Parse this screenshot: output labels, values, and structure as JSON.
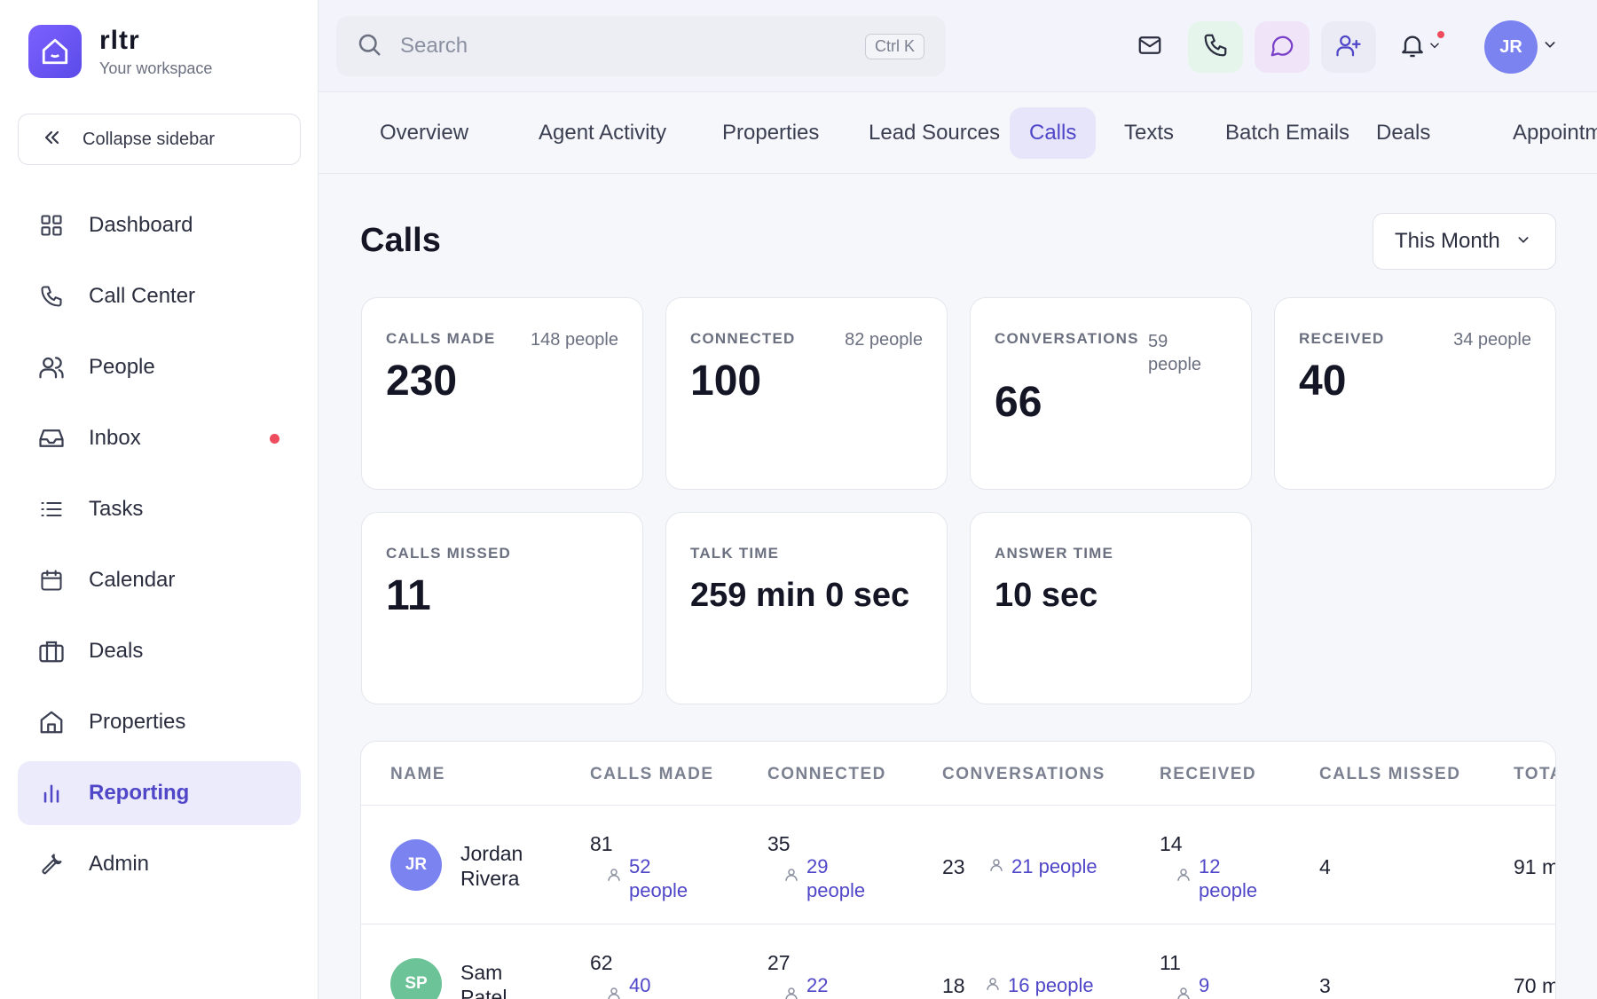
{
  "brand": {
    "name": "rltr",
    "subtitle": "Your workspace"
  },
  "sidebar": {
    "collapse_label": "Collapse sidebar",
    "items": [
      {
        "label": "Dashboard",
        "icon": "grid-icon"
      },
      {
        "label": "Call Center",
        "icon": "phone-icon"
      },
      {
        "label": "People",
        "icon": "users-icon"
      },
      {
        "label": "Inbox",
        "icon": "inbox-icon",
        "has_dot": true
      },
      {
        "label": "Tasks",
        "icon": "list-icon"
      },
      {
        "label": "Calendar",
        "icon": "calendar-icon"
      },
      {
        "label": "Deals",
        "icon": "briefcase-icon"
      },
      {
        "label": "Properties",
        "icon": "home-icon"
      },
      {
        "label": "Reporting",
        "icon": "bar-chart-icon",
        "active": true
      },
      {
        "label": "Admin",
        "icon": "wrench-icon"
      }
    ]
  },
  "topbar": {
    "search_placeholder": "Search",
    "shortcut": "Ctrl K",
    "user_initials": "JR"
  },
  "tabs": [
    {
      "label": "Overview"
    },
    {
      "label": "Agent Activity"
    },
    {
      "label": "Properties"
    },
    {
      "label": "Lead Sources"
    },
    {
      "label": "Calls",
      "active": true
    },
    {
      "label": "Texts"
    },
    {
      "label": "Batch Emails"
    },
    {
      "label": "Deals"
    },
    {
      "label": "Appointme"
    }
  ],
  "page": {
    "title": "Calls",
    "period": "This Month"
  },
  "cards": [
    {
      "label": "CALLS MADE",
      "people": "148 people",
      "value": "230"
    },
    {
      "label": "CONNECTED",
      "people": "82 people",
      "value": "100"
    },
    {
      "label": "CONVERSATIONS",
      "people": "59 people",
      "value": "66"
    },
    {
      "label": "RECEIVED",
      "people": "34 people",
      "value": "40"
    },
    {
      "label": "CALLS MISSED",
      "value": "11"
    },
    {
      "label": "TALK TIME",
      "value": "259 min 0 sec"
    },
    {
      "label": "ANSWER TIME",
      "value": "10 sec"
    }
  ],
  "table": {
    "headers": [
      "NAME",
      "CALLS MADE",
      "CONNECTED",
      "CONVERSATIONS",
      "RECEIVED",
      "CALLS MISSED",
      "TOTA"
    ],
    "rows": [
      {
        "initials": "JR",
        "name": "Jordan Rivera",
        "avatar_color": "#7b83f0",
        "calls_made": "81",
        "calls_made_people": "52 people",
        "connected": "35",
        "connected_people": "29 people",
        "conversations": "23",
        "conversations_people": "21 people",
        "received": "14",
        "received_people": "12 people",
        "calls_missed": "4",
        "total": "91 m"
      },
      {
        "initials": "SP",
        "name": "Sam Patel",
        "avatar_color": "#6cc397",
        "calls_made": "62",
        "calls_made_people": "40",
        "connected": "27",
        "connected_people": "22",
        "conversations": "18",
        "conversations_people": "16 people",
        "received": "11",
        "received_people": "9",
        "calls_missed": "3",
        "total": "70 m"
      }
    ]
  },
  "colors": {
    "accent": "#4f46c8",
    "brand": "#6b55f0",
    "alert": "#ee4b5d"
  }
}
